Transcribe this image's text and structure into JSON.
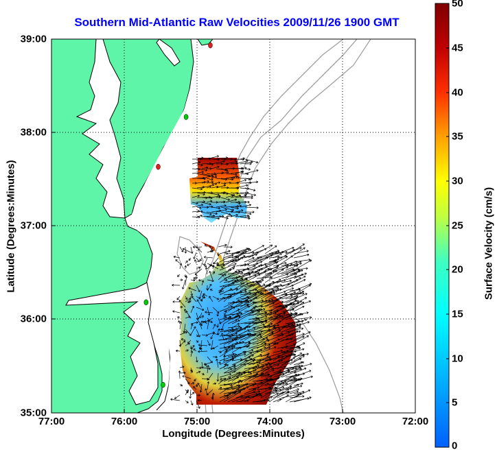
{
  "title": "Southern Mid-Atlantic Raw Velocities 2009/11/26 1900 GMT",
  "x_axis": {
    "label": "Longitude (Degrees:Minutes)",
    "ticks": [
      "77:00",
      "76:00",
      "75:00",
      "74:00",
      "73:00",
      "72:00"
    ],
    "range": [
      "77:00",
      "72:00"
    ]
  },
  "y_axis": {
    "label": "Latitude (Degrees:Minutes)",
    "ticks": [
      "39:00",
      "38:00",
      "37:00",
      "36:00",
      "35:00"
    ],
    "range": [
      "35:00",
      "39:00"
    ]
  },
  "colorbar": {
    "label": "Surface Velocity (cm/s)",
    "ticks": [
      "50",
      "45",
      "40",
      "35",
      "30",
      "25",
      "20",
      "15",
      "10",
      "5",
      "0"
    ],
    "min": 0,
    "max": 50,
    "colormap": "jet"
  },
  "colors": {
    "title": "#0000ff",
    "land": "#5ef5a8",
    "coastline": "#000000",
    "bathymetry": "#a0a0a0",
    "grid": "#000000",
    "station_active": "#00cc00",
    "station_inactive": "#e02020"
  },
  "grid": "dotted",
  "map_features": [
    "land",
    "coastline",
    "bathymetry contours",
    "hf radar stations",
    "velocity vectors"
  ],
  "stations": [
    {
      "lon": "74:49",
      "lat": "38:56",
      "status": "inactive"
    },
    {
      "lon": "75:09",
      "lat": "38:10",
      "status": "active"
    },
    {
      "lon": "75:32",
      "lat": "37:38",
      "status": "inactive"
    },
    {
      "lon": "75:42",
      "lat": "36:11",
      "status": "active"
    },
    {
      "lon": "75:28",
      "lat": "35:18",
      "status": "active"
    }
  ]
}
